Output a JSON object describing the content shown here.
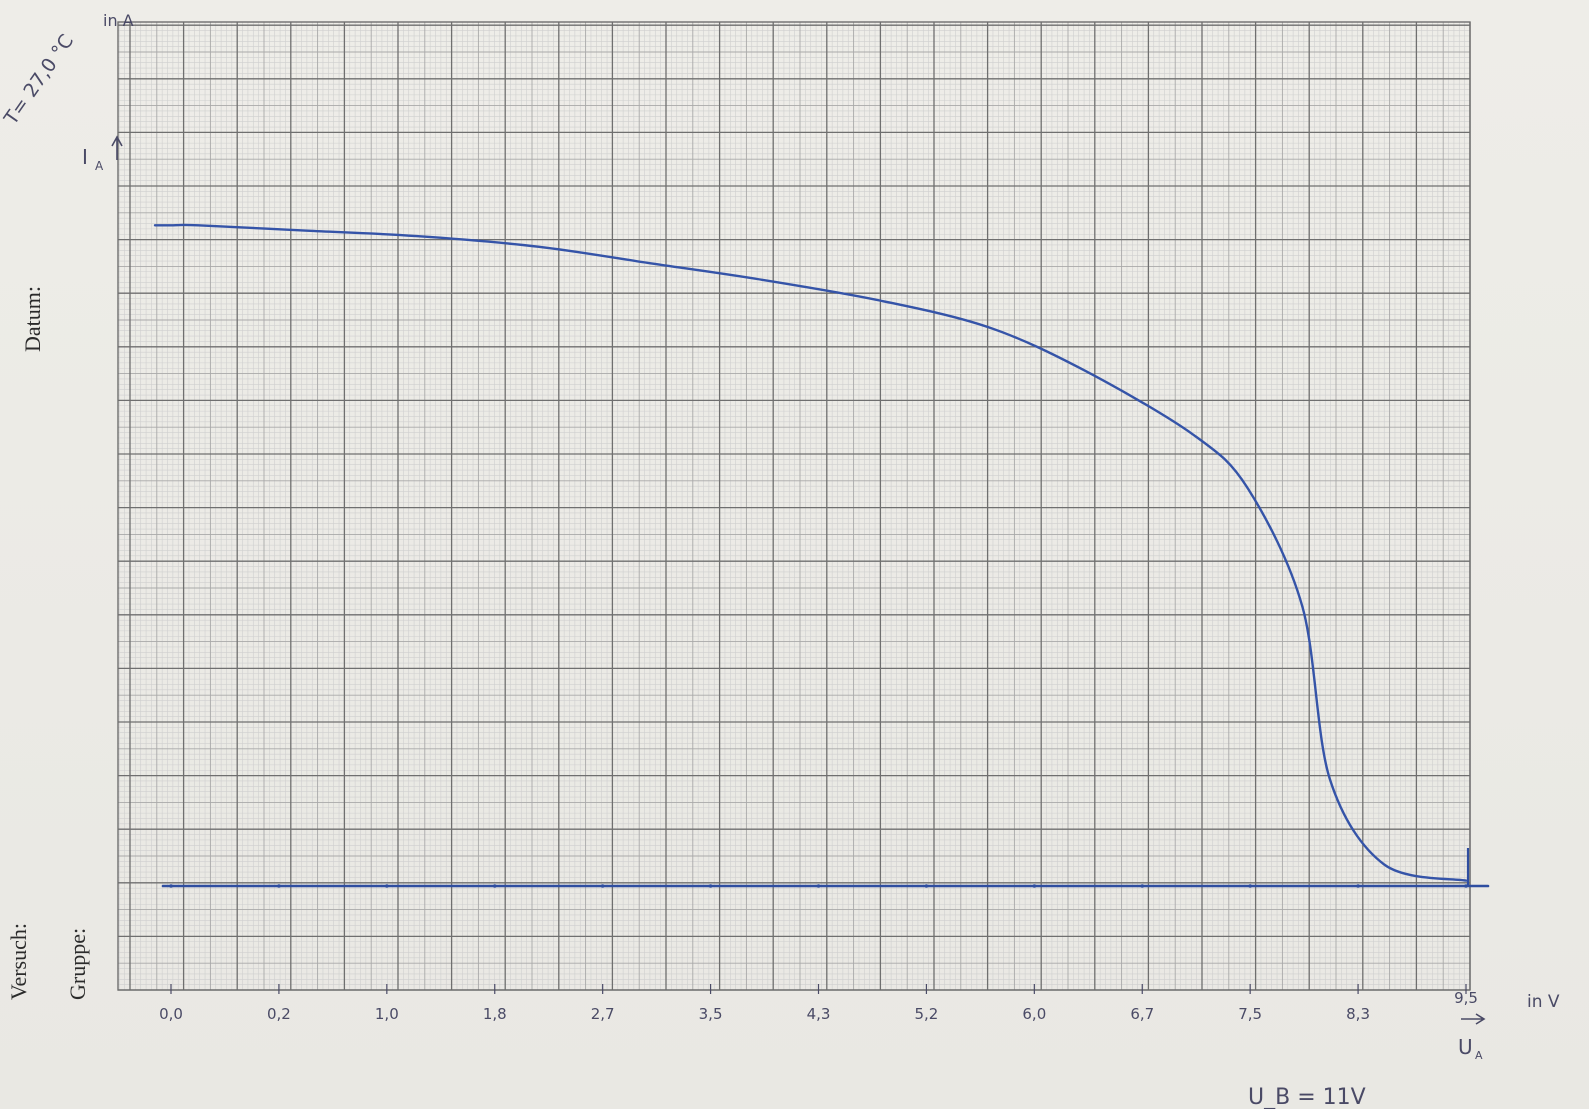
{
  "sheet": {
    "label_date": "Datum:",
    "label_experiment": "Versuch:",
    "label_group": "Gruppe:",
    "temperature_note": "T= 27,0 °C"
  },
  "chart_data": {
    "type": "line",
    "x_axis": {
      "symbol": "U",
      "symbol_sub": "A",
      "unit_label": "in V",
      "tick_labels": [
        "0,0",
        "0,2",
        "1,0",
        "1,8",
        "2,7",
        "3,5",
        "4,3",
        "5,2",
        "6,0",
        "6,7",
        "7,5",
        "8,3",
        "9,5"
      ]
    },
    "y_axis": {
      "symbol": "I",
      "symbol_sub": "A",
      "unit_label": "in A",
      "tick_labels": []
    },
    "annotation_supply": "U_B = 11V",
    "grid": true,
    "series": [
      {
        "color": "#3554a8",
        "x": [
          0,
          0.2,
          1.0,
          1.8,
          2.7,
          3.5,
          4.3,
          5.2,
          6.0,
          6.7,
          7.5,
          7.9,
          8.3,
          8.5,
          8.9,
          9.5
        ],
        "y": [
          12.3,
          12.3,
          12.2,
          12.1,
          11.9,
          11.6,
          11.3,
          10.9,
          10.4,
          9.6,
          8.4,
          7.4,
          5.2,
          2.0,
          0.4,
          0.1
        ]
      }
    ],
    "xlim": [
      0,
      9.5
    ],
    "ylim": [
      0,
      14
    ]
  }
}
